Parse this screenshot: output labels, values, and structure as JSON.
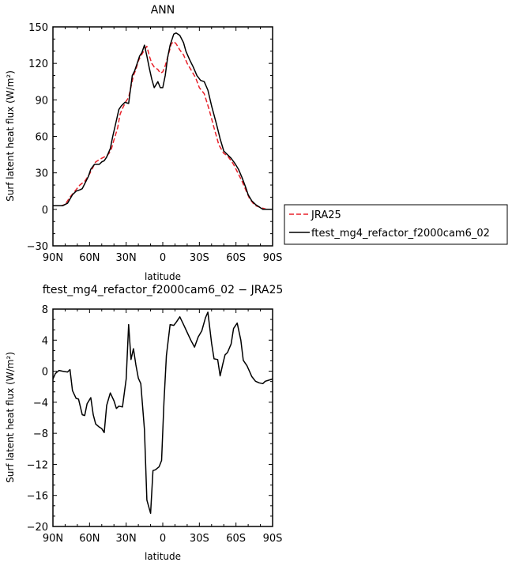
{
  "chart_data": [
    {
      "type": "line",
      "title": "ANN",
      "xlabel": "latitude",
      "ylabel": "Surf latent heat flux (W/m²)",
      "xlim": [
        -90,
        90
      ],
      "ylim": [
        -30,
        150
      ],
      "x_ticks": [
        -90,
        -60,
        -30,
        0,
        30,
        60,
        90
      ],
      "x_tick_labels": [
        "90N",
        "60N",
        "30N",
        "0",
        "30S",
        "60S",
        "90S"
      ],
      "y_ticks": [
        -30,
        0,
        30,
        60,
        90,
        120,
        150
      ],
      "y_tick_labels": [
        "−30",
        "0",
        "30",
        "60",
        "90",
        "120",
        "150"
      ],
      "series": [
        {
          "name": "JRA25",
          "color": "#e8212a",
          "dash": true,
          "x": [
            -90,
            -83,
            -80,
            -76,
            -72,
            -68,
            -64,
            -60,
            -57,
            -55,
            -50,
            -46,
            -44,
            -42,
            -40,
            -37,
            -35,
            -33,
            -30,
            -28,
            -24,
            -22,
            -20,
            -18,
            -15,
            -13,
            -11,
            -9,
            -7,
            -4,
            -2,
            0,
            2,
            4,
            7,
            9,
            11,
            14,
            17,
            20,
            23,
            27,
            30,
            34,
            38,
            42,
            46,
            50,
            53,
            56,
            58,
            60,
            62,
            65,
            68,
            71,
            74,
            76,
            79,
            82,
            85,
            88,
            90
          ],
          "y": [
            3,
            3,
            4,
            10,
            15,
            20,
            23,
            29,
            35,
            39,
            42,
            44,
            46,
            50,
            57,
            67,
            78,
            83,
            89,
            92,
            110,
            115,
            122,
            126,
            131,
            134,
            126,
            120,
            117,
            115,
            112,
            113,
            118,
            125,
            136,
            138,
            136,
            131,
            127,
            120,
            115,
            108,
            100,
            95,
            82,
            67,
            53,
            46,
            44,
            40,
            37,
            33,
            29,
            23,
            16,
            9,
            5,
            3,
            2,
            1,
            0,
            0,
            0
          ]
        },
        {
          "name": "ftest_mg4_refactor_f2000cam6_02",
          "color": "#000000",
          "dash": false,
          "x": [
            -90,
            -85,
            -82,
            -78,
            -74,
            -71,
            -68,
            -66,
            -64,
            -61,
            -59,
            -56,
            -54,
            -52,
            -50,
            -48,
            -46,
            -43,
            -41,
            -38,
            -36,
            -34,
            -31,
            -28,
            -25,
            -23,
            -21,
            -19,
            -17,
            -15,
            -13,
            -11,
            -9,
            -7,
            -4,
            -2,
            0,
            2,
            4,
            6,
            9,
            11,
            14,
            17,
            19,
            22,
            25,
            28,
            31,
            34,
            37,
            40,
            44,
            47,
            50,
            53,
            56,
            59,
            62,
            65,
            68,
            70,
            73,
            76,
            79,
            82,
            85,
            88,
            90
          ],
          "y": [
            3,
            3,
            3,
            5,
            12,
            15,
            16,
            17,
            21,
            27,
            33,
            37,
            37,
            37,
            39,
            40,
            43,
            50,
            60,
            73,
            82,
            85,
            88,
            87,
            110,
            114,
            120,
            126,
            129,
            135,
            126,
            116,
            107,
            100,
            105,
            100,
            100,
            110,
            125,
            135,
            144,
            145,
            143,
            137,
            130,
            123,
            117,
            110,
            106,
            105,
            98,
            85,
            70,
            58,
            48,
            45,
            42,
            38,
            33,
            26,
            18,
            12,
            7,
            4,
            2,
            0,
            0,
            0,
            0
          ]
        }
      ],
      "legend": {
        "placement": "right",
        "entries": [
          "JRA25",
          "ftest_mg4_refactor_f2000cam6_02"
        ]
      },
      "grid": false
    },
    {
      "type": "line",
      "title": "ftest_mg4_refactor_f2000cam6_02 − JRA25",
      "xlabel": "latitude",
      "ylabel": "Surf latent heat flux (W/m²)",
      "xlim": [
        -90,
        90
      ],
      "ylim": [
        -20,
        8
      ],
      "x_ticks": [
        -90,
        -60,
        -30,
        0,
        30,
        60,
        90
      ],
      "x_tick_labels": [
        "90N",
        "60N",
        "30N",
        "0",
        "30S",
        "60S",
        "90S"
      ],
      "y_ticks": [
        -20,
        -16,
        -12,
        -8,
        -4,
        0,
        4,
        8
      ],
      "y_tick_labels": [
        "−20",
        "−16",
        "−12",
        "−8",
        "−4",
        "0",
        "4",
        "8"
      ],
      "series": [
        {
          "name": "",
          "color": "#000000",
          "dash": false,
          "x": [
            -90,
            -88,
            -85,
            -82,
            -78,
            -76,
            -74,
            -71,
            -69,
            -66,
            -64,
            -62,
            -59,
            -57,
            -55,
            -52,
            -50,
            -48,
            -46,
            -43,
            -40,
            -38,
            -36,
            -33,
            -30,
            -28,
            -26,
            -24,
            -22,
            -20,
            -18,
            -15,
            -13,
            -10,
            -8,
            -6,
            -3,
            -1,
            1,
            3,
            6,
            9,
            11,
            14,
            17,
            20,
            23,
            26,
            29,
            32,
            35,
            37,
            40,
            42,
            45,
            47,
            49,
            51,
            53,
            56,
            58,
            61,
            64,
            66,
            69,
            71,
            73,
            76,
            79,
            82,
            84,
            86,
            88,
            90
          ],
          "y": [
            -1,
            -0.3,
            0.1,
            0,
            -0.1,
            0.2,
            -2.5,
            -3.5,
            -3.6,
            -5.6,
            -5.7,
            -4.2,
            -3.4,
            -5.6,
            -6.8,
            -7.2,
            -7.4,
            -7.9,
            -4.4,
            -2.8,
            -3.8,
            -4.8,
            -4.5,
            -4.6,
            -1,
            6,
            1.5,
            2.9,
            0.8,
            -0.9,
            -1.6,
            -7.5,
            -16.6,
            -18.3,
            -12.8,
            -12.7,
            -12.3,
            -11.5,
            -4,
            2,
            6,
            5.9,
            6.3,
            7,
            6,
            5,
            4,
            3.1,
            4.4,
            5.2,
            6.9,
            7.6,
            3.6,
            1.6,
            1.5,
            -0.6,
            0.8,
            2.1,
            2.4,
            3.5,
            5.5,
            6.2,
            4,
            1.4,
            0.7,
            0,
            -0.7,
            -1.3,
            -1.5,
            -1.6,
            -1.3,
            -1.2,
            -1.1,
            -1
          ]
        }
      ],
      "grid": false
    }
  ]
}
